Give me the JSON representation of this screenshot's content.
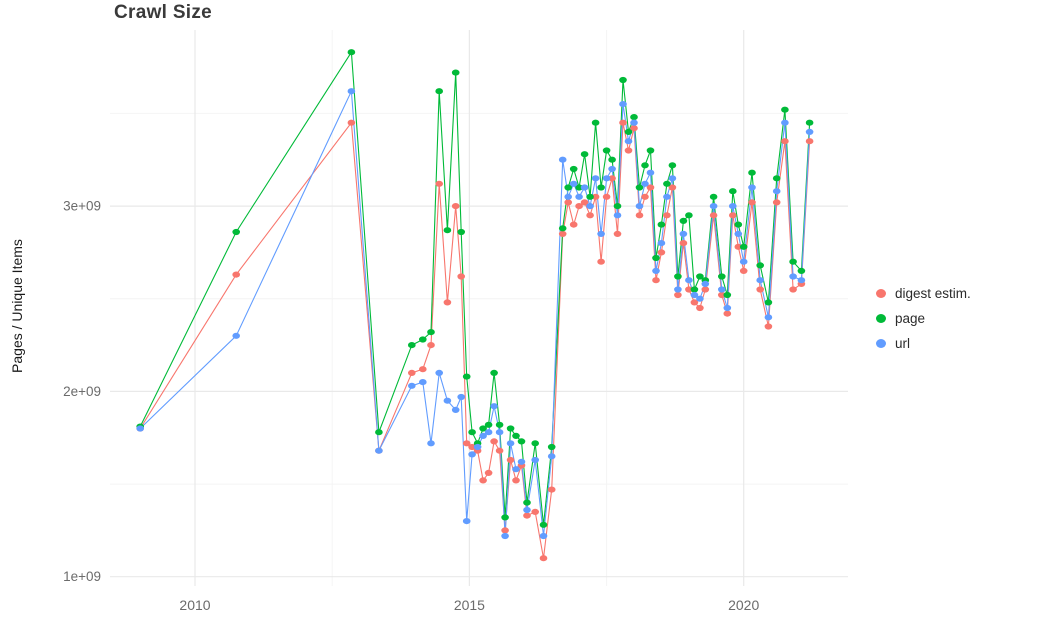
{
  "chart_data": {
    "type": "line",
    "title": "Crawl Size",
    "xlabel": "",
    "ylabel": "Pages / Unique Items",
    "legend_position": "right",
    "grid": {
      "on": true,
      "major_color": "#e9e9e9",
      "minor_color": "#f4f4f4",
      "x_minor": [
        2012.5,
        2017.5
      ],
      "y_minor": [
        1.5,
        2.5,
        3.5
      ]
    },
    "xlim": [
      2008.45,
      2021.9
    ],
    "ylim": [
      0.95,
      3.95
    ],
    "x_ticks": [
      2010,
      2015,
      2020
    ],
    "x_tick_labels": [
      "2010",
      "2015",
      "2020"
    ],
    "y_ticks": [
      1,
      2,
      3
    ],
    "y_tick_labels": [
      "1e+09",
      "2e+09",
      "3e+09"
    ],
    "y_values_unit": "1e9",
    "x": [
      2009.0,
      2010.75,
      2012.85,
      2013.35,
      2013.95,
      2014.15,
      2014.3,
      2014.45,
      2014.6,
      2014.75,
      2014.85,
      2014.95,
      2015.05,
      2015.15,
      2015.25,
      2015.35,
      2015.45,
      2015.55,
      2015.65,
      2015.75,
      2015.85,
      2015.95,
      2016.05,
      2016.2,
      2016.35,
      2016.5,
      2016.7,
      2016.8,
      2016.9,
      2017.0,
      2017.1,
      2017.2,
      2017.3,
      2017.4,
      2017.5,
      2017.6,
      2017.7,
      2017.8,
      2017.9,
      2018.0,
      2018.1,
      2018.2,
      2018.3,
      2018.4,
      2018.5,
      2018.6,
      2018.7,
      2018.8,
      2018.9,
      2019.0,
      2019.1,
      2019.2,
      2019.3,
      2019.45,
      2019.6,
      2019.7,
      2019.8,
      2019.9,
      2020.0,
      2020.15,
      2020.3,
      2020.45,
      2020.6,
      2020.75,
      2020.9,
      2021.05,
      2021.2
    ],
    "series": [
      {
        "key": "digest",
        "name": "digest estim.",
        "color": "#F8766D",
        "values": [
          1.8,
          2.63,
          3.45,
          1.68,
          2.1,
          2.12,
          2.25,
          3.12,
          2.48,
          3.0,
          2.62,
          1.72,
          1.7,
          1.68,
          1.52,
          1.56,
          1.73,
          1.68,
          1.25,
          1.63,
          1.52,
          1.6,
          1.33,
          1.35,
          1.1,
          1.47,
          2.85,
          3.02,
          2.9,
          3.0,
          3.02,
          2.95,
          3.05,
          2.7,
          3.05,
          3.15,
          2.85,
          3.45,
          3.3,
          3.42,
          2.95,
          3.05,
          3.1,
          2.6,
          2.75,
          2.95,
          3.1,
          2.52,
          2.8,
          2.55,
          2.48,
          2.45,
          2.55,
          2.95,
          2.52,
          2.42,
          2.95,
          2.78,
          2.65,
          3.02,
          2.55,
          2.35,
          3.02,
          3.35,
          2.55,
          2.58,
          3.35
        ]
      },
      {
        "key": "page",
        "name": "page",
        "color": "#00BA38",
        "values": [
          1.81,
          2.86,
          3.83,
          1.78,
          2.25,
          2.28,
          2.32,
          3.62,
          2.87,
          3.72,
          2.86,
          2.08,
          1.78,
          1.72,
          1.8,
          1.82,
          2.1,
          1.82,
          1.32,
          1.8,
          1.76,
          1.73,
          1.4,
          1.72,
          1.28,
          1.7,
          2.88,
          3.1,
          3.2,
          3.1,
          3.28,
          3.05,
          3.45,
          3.1,
          3.3,
          3.25,
          3.0,
          3.68,
          3.4,
          3.48,
          3.1,
          3.22,
          3.3,
          2.72,
          2.9,
          3.12,
          3.22,
          2.62,
          2.92,
          2.95,
          2.55,
          2.62,
          2.6,
          3.05,
          2.62,
          2.52,
          3.08,
          2.9,
          2.78,
          3.18,
          2.68,
          2.48,
          3.15,
          3.52,
          2.7,
          2.65,
          3.45
        ]
      },
      {
        "key": "url",
        "name": "url",
        "color": "#619CFF",
        "values": [
          1.8,
          2.3,
          3.62,
          1.68,
          2.03,
          2.05,
          1.72,
          2.1,
          1.95,
          1.9,
          1.97,
          1.3,
          1.66,
          1.7,
          1.76,
          1.78,
          1.92,
          1.78,
          1.22,
          1.72,
          1.58,
          1.62,
          1.36,
          1.63,
          1.22,
          1.65,
          3.25,
          3.05,
          3.12,
          3.05,
          3.1,
          3.0,
          3.15,
          2.85,
          3.15,
          3.2,
          2.95,
          3.55,
          3.35,
          3.45,
          3.0,
          3.12,
          3.18,
          2.65,
          2.8,
          3.05,
          3.15,
          2.55,
          2.85,
          2.6,
          2.52,
          2.5,
          2.58,
          3.0,
          2.55,
          2.45,
          3.0,
          2.85,
          2.7,
          3.1,
          2.6,
          2.4,
          3.08,
          3.45,
          2.62,
          2.6,
          3.4
        ]
      }
    ]
  }
}
